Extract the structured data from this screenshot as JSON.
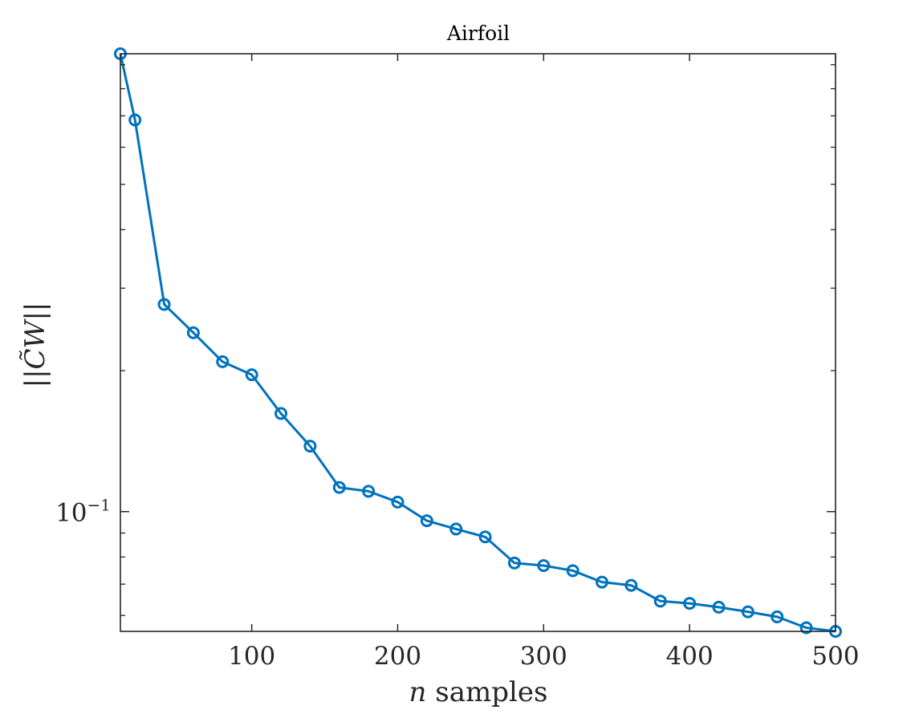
{
  "chart_data": {
    "type": "line",
    "title": "Airfoil",
    "xlabel_var": "n",
    "xlabel_rest": " samples",
    "ylabel": "||C̃W||",
    "xscale": "linear",
    "yscale": "log",
    "xlim": [
      10,
      500
    ],
    "ylim": [
      0.0555,
      0.95
    ],
    "xticks": [
      100,
      200,
      300,
      400,
      500
    ],
    "yticks": [
      {
        "value": 0.1,
        "base": "10",
        "exponent": "−1"
      }
    ],
    "grid": false,
    "box": true,
    "series": [
      {
        "color": "#0072BD",
        "marker": "circle",
        "x": [
          10,
          20,
          40,
          60,
          80,
          100,
          120,
          140,
          160,
          180,
          200,
          220,
          240,
          260,
          280,
          300,
          320,
          340,
          360,
          380,
          400,
          420,
          440,
          460,
          480,
          500
        ],
        "y": [
          0.95,
          0.686,
          0.277,
          0.241,
          0.209,
          0.196,
          0.162,
          0.138,
          0.1126,
          0.1105,
          0.1048,
          0.0956,
          0.0918,
          0.0883,
          0.0777,
          0.0767,
          0.0748,
          0.0707,
          0.0696,
          0.0644,
          0.0637,
          0.0625,
          0.0611,
          0.0596,
          0.0565,
          0.0555
        ]
      }
    ]
  }
}
